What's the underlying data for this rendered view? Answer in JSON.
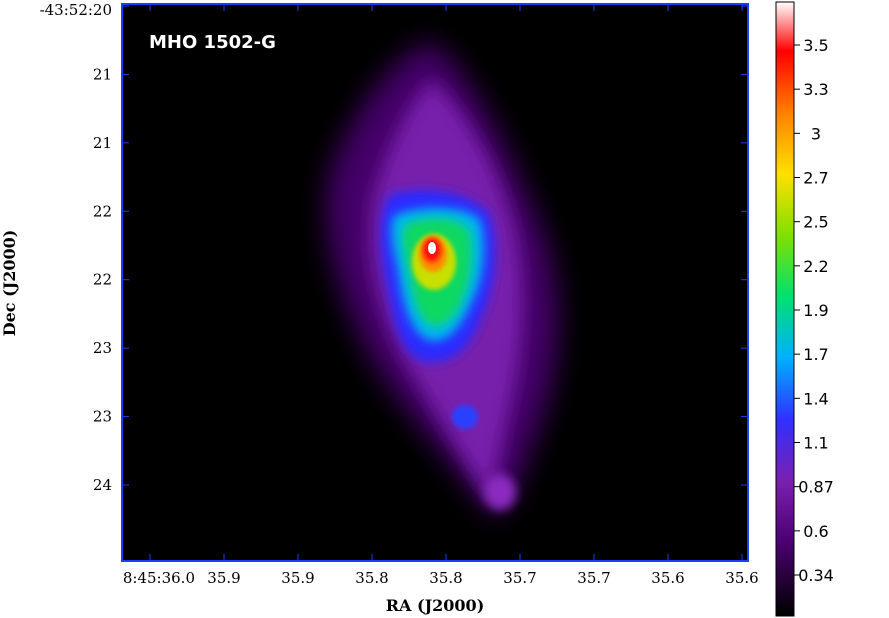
{
  "chart_data": {
    "type": "heatmap",
    "title": "MHO 1502-G",
    "xlabel": "RA (J2000)",
    "ylabel": "Dec (J2000)",
    "x_tick_labels": [
      "8:45:36.0",
      "35.9",
      "35.9",
      "35.8",
      "35.8",
      "35.7",
      "35.7",
      "35.6",
      "35.6"
    ],
    "y_tick_labels": [
      "-43:52:20",
      "21",
      "21",
      "22",
      "22",
      "23",
      "23",
      "24"
    ],
    "colorbar": {
      "tick_labels": [
        "3.5",
        "3.3",
        "3",
        "2.7",
        "2.5",
        "2.2",
        "1.9",
        "1.7",
        "1.4",
        "1.1",
        "0.87",
        "0.6",
        "0.34"
      ],
      "colors": [
        "#000000",
        "#4a0070",
        "#7a20b0",
        "#3030ff",
        "#00b0ff",
        "#00e070",
        "#80e000",
        "#ffe000",
        "#ff8000",
        "#ff0000",
        "#ffffff"
      ]
    },
    "grid": false,
    "frame_color": "#1a3cff",
    "background": "#000000",
    "emission": {
      "peak_value": 3.6,
      "description_features": [
        "bright compact core",
        "elongated diffuse envelope",
        "secondary knot"
      ]
    }
  }
}
